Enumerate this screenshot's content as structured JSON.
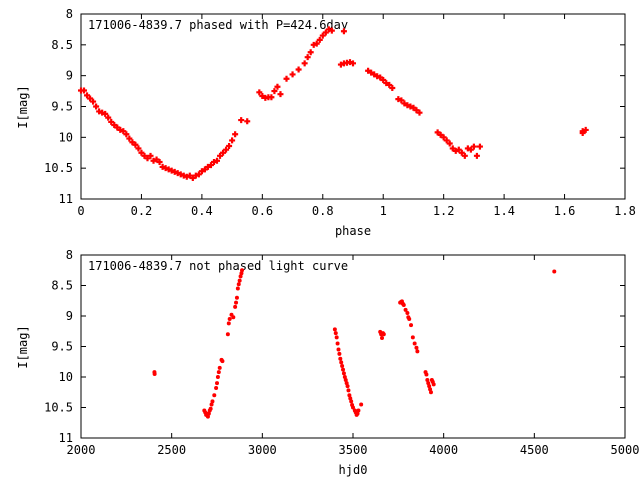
{
  "chart_data": [
    {
      "type": "scatter",
      "title": "171006-4839.7 phased with P=424.6day",
      "xlabel": "phase",
      "ylabel": "I[mag]",
      "xlim": [
        0,
        1.8
      ],
      "ylim": [
        11,
        8
      ],
      "y_inverted": true,
      "marker": "plus",
      "color": "#ff0000",
      "grid": false,
      "xticks": [
        "0",
        "0.2",
        "0.4",
        "0.6",
        "0.8",
        "1",
        "1.2",
        "1.4",
        "1.6",
        "1.8"
      ],
      "yticks": [
        "8",
        "8.5",
        "9",
        "9.5",
        "10",
        "10.5",
        "11"
      ],
      "series": [
        {
          "points": [
            [
              0.0,
              9.24
            ],
            [
              0.01,
              9.24
            ],
            [
              0.02,
              9.32
            ],
            [
              0.03,
              9.37
            ],
            [
              0.04,
              9.42
            ],
            [
              0.05,
              9.5
            ],
            [
              0.06,
              9.58
            ],
            [
              0.07,
              9.6
            ],
            [
              0.08,
              9.62
            ],
            [
              0.09,
              9.68
            ],
            [
              0.1,
              9.75
            ],
            [
              0.11,
              9.8
            ],
            [
              0.12,
              9.84
            ],
            [
              0.13,
              9.88
            ],
            [
              0.14,
              9.9
            ],
            [
              0.15,
              9.95
            ],
            [
              0.16,
              10.02
            ],
            [
              0.17,
              10.08
            ],
            [
              0.18,
              10.12
            ],
            [
              0.19,
              10.18
            ],
            [
              0.2,
              10.25
            ],
            [
              0.21,
              10.3
            ],
            [
              0.22,
              10.34
            ],
            [
              0.23,
              10.3
            ],
            [
              0.24,
              10.38
            ],
            [
              0.25,
              10.36
            ],
            [
              0.26,
              10.4
            ],
            [
              0.27,
              10.48
            ],
            [
              0.28,
              10.5
            ],
            [
              0.29,
              10.52
            ],
            [
              0.3,
              10.54
            ],
            [
              0.31,
              10.56
            ],
            [
              0.32,
              10.58
            ],
            [
              0.33,
              10.6
            ],
            [
              0.34,
              10.62
            ],
            [
              0.35,
              10.64
            ],
            [
              0.36,
              10.62
            ],
            [
              0.37,
              10.66
            ],
            [
              0.38,
              10.62
            ],
            [
              0.39,
              10.6
            ],
            [
              0.4,
              10.55
            ],
            [
              0.41,
              10.52
            ],
            [
              0.42,
              10.48
            ],
            [
              0.43,
              10.45
            ],
            [
              0.44,
              10.4
            ],
            [
              0.45,
              10.38
            ],
            [
              0.46,
              10.3
            ],
            [
              0.47,
              10.25
            ],
            [
              0.48,
              10.2
            ],
            [
              0.49,
              10.14
            ],
            [
              0.5,
              10.05
            ],
            [
              0.51,
              9.95
            ],
            [
              0.53,
              9.72
            ],
            [
              0.55,
              9.74
            ],
            [
              0.59,
              9.27
            ],
            [
              0.6,
              9.33
            ],
            [
              0.61,
              9.36
            ],
            [
              0.62,
              9.35
            ],
            [
              0.63,
              9.35
            ],
            [
              0.64,
              9.25
            ],
            [
              0.65,
              9.18
            ],
            [
              0.66,
              9.3
            ],
            [
              0.68,
              9.05
            ],
            [
              0.7,
              8.98
            ],
            [
              0.72,
              8.9
            ],
            [
              0.74,
              8.8
            ],
            [
              0.75,
              8.7
            ],
            [
              0.76,
              8.62
            ],
            [
              0.77,
              8.5
            ],
            [
              0.78,
              8.48
            ],
            [
              0.79,
              8.42
            ],
            [
              0.8,
              8.35
            ],
            [
              0.81,
              8.3
            ],
            [
              0.82,
              8.25
            ],
            [
              0.83,
              8.27
            ],
            [
              0.87,
              8.28
            ],
            [
              0.86,
              8.82
            ],
            [
              0.87,
              8.8
            ],
            [
              0.88,
              8.79
            ],
            [
              0.89,
              8.78
            ],
            [
              0.9,
              8.8
            ],
            [
              0.95,
              8.92
            ],
            [
              0.96,
              8.95
            ],
            [
              0.97,
              8.98
            ],
            [
              0.98,
              9.01
            ],
            [
              0.99,
              9.03
            ],
            [
              1.0,
              9.07
            ],
            [
              1.01,
              9.12
            ],
            [
              1.02,
              9.15
            ],
            [
              1.03,
              9.2
            ],
            [
              1.05,
              9.38
            ],
            [
              1.06,
              9.4
            ],
            [
              1.07,
              9.45
            ],
            [
              1.08,
              9.48
            ],
            [
              1.09,
              9.5
            ],
            [
              1.1,
              9.52
            ],
            [
              1.11,
              9.56
            ],
            [
              1.12,
              9.6
            ],
            [
              1.18,
              9.92
            ],
            [
              1.19,
              9.96
            ],
            [
              1.2,
              10.0
            ],
            [
              1.21,
              10.05
            ],
            [
              1.22,
              10.1
            ],
            [
              1.23,
              10.18
            ],
            [
              1.24,
              10.22
            ],
            [
              1.25,
              10.2
            ],
            [
              1.26,
              10.25
            ],
            [
              1.27,
              10.3
            ],
            [
              1.28,
              10.18
            ],
            [
              1.29,
              10.2
            ],
            [
              1.3,
              10.15
            ],
            [
              1.31,
              10.3
            ],
            [
              1.32,
              10.15
            ],
            [
              1.66,
              9.9
            ],
            [
              1.66,
              9.93
            ],
            [
              1.67,
              9.88
            ]
          ]
        }
      ]
    },
    {
      "type": "scatter",
      "title": "171006-4839.7 not phased light curve",
      "xlabel": "hjd0",
      "ylabel": "I[mag]",
      "xlim": [
        2000,
        5000
      ],
      "ylim": [
        11,
        8
      ],
      "y_inverted": true,
      "marker": "dot",
      "color": "#ff0000",
      "grid": false,
      "xticks": [
        "2000",
        "2500",
        "3000",
        "3500",
        "4000",
        "4500",
        "5000"
      ],
      "yticks": [
        "8",
        "8.5",
        "9",
        "9.5",
        "10",
        "10.5",
        "11"
      ],
      "series": [
        {
          "points": [
            [
              2405,
              9.92
            ],
            [
              2406,
              9.95
            ],
            [
              2680,
              10.55
            ],
            [
              2685,
              10.58
            ],
            [
              2690,
              10.62
            ],
            [
              2695,
              10.6
            ],
            [
              2700,
              10.65
            ],
            [
              2705,
              10.6
            ],
            [
              2710,
              10.55
            ],
            [
              2715,
              10.52
            ],
            [
              2720,
              10.45
            ],
            [
              2725,
              10.4
            ],
            [
              2735,
              10.3
            ],
            [
              2745,
              10.18
            ],
            [
              2750,
              10.1
            ],
            [
              2755,
              10.0
            ],
            [
              2760,
              9.92
            ],
            [
              2765,
              9.85
            ],
            [
              2775,
              9.72
            ],
            [
              2780,
              9.74
            ],
            [
              2810,
              9.3
            ],
            [
              2815,
              9.12
            ],
            [
              2820,
              9.05
            ],
            [
              2830,
              8.98
            ],
            [
              2840,
              9.02
            ],
            [
              2850,
              8.85
            ],
            [
              2855,
              8.78
            ],
            [
              2860,
              8.7
            ],
            [
              2865,
              8.55
            ],
            [
              2870,
              8.48
            ],
            [
              2875,
              8.42
            ],
            [
              2880,
              8.35
            ],
            [
              2885,
              8.3
            ],
            [
              2888,
              8.25
            ],
            [
              3400,
              9.22
            ],
            [
              3405,
              9.28
            ],
            [
              3410,
              9.35
            ],
            [
              3415,
              9.45
            ],
            [
              3420,
              9.55
            ],
            [
              3425,
              9.62
            ],
            [
              3430,
              9.7
            ],
            [
              3435,
              9.76
            ],
            [
              3440,
              9.82
            ],
            [
              3445,
              9.88
            ],
            [
              3450,
              9.94
            ],
            [
              3455,
              10.0
            ],
            [
              3460,
              10.05
            ],
            [
              3465,
              10.1
            ],
            [
              3470,
              10.15
            ],
            [
              3475,
              10.22
            ],
            [
              3480,
              10.3
            ],
            [
              3485,
              10.35
            ],
            [
              3490,
              10.4
            ],
            [
              3495,
              10.46
            ],
            [
              3500,
              10.5
            ],
            [
              3510,
              10.55
            ],
            [
              3515,
              10.58
            ],
            [
              3520,
              10.62
            ],
            [
              3525,
              10.6
            ],
            [
              3530,
              10.55
            ],
            [
              3545,
              10.45
            ],
            [
              3650,
              9.26
            ],
            [
              3655,
              9.3
            ],
            [
              3660,
              9.36
            ],
            [
              3665,
              9.28
            ],
            [
              3670,
              9.3
            ],
            [
              3760,
              8.78
            ],
            [
              3765,
              8.77
            ],
            [
              3770,
              8.76
            ],
            [
              3775,
              8.8
            ],
            [
              3780,
              8.82
            ],
            [
              3790,
              8.9
            ],
            [
              3800,
              8.95
            ],
            [
              3805,
              9.02
            ],
            [
              3810,
              9.05
            ],
            [
              3820,
              9.15
            ],
            [
              3830,
              9.35
            ],
            [
              3840,
              9.45
            ],
            [
              3850,
              9.52
            ],
            [
              3855,
              9.58
            ],
            [
              3900,
              9.92
            ],
            [
              3905,
              9.96
            ],
            [
              3910,
              10.05
            ],
            [
              3915,
              10.1
            ],
            [
              3920,
              10.15
            ],
            [
              3925,
              10.2
            ],
            [
              3930,
              10.25
            ],
            [
              3935,
              10.05
            ],
            [
              3940,
              10.08
            ],
            [
              3945,
              10.12
            ],
            [
              4610,
              8.27
            ]
          ]
        }
      ]
    }
  ]
}
